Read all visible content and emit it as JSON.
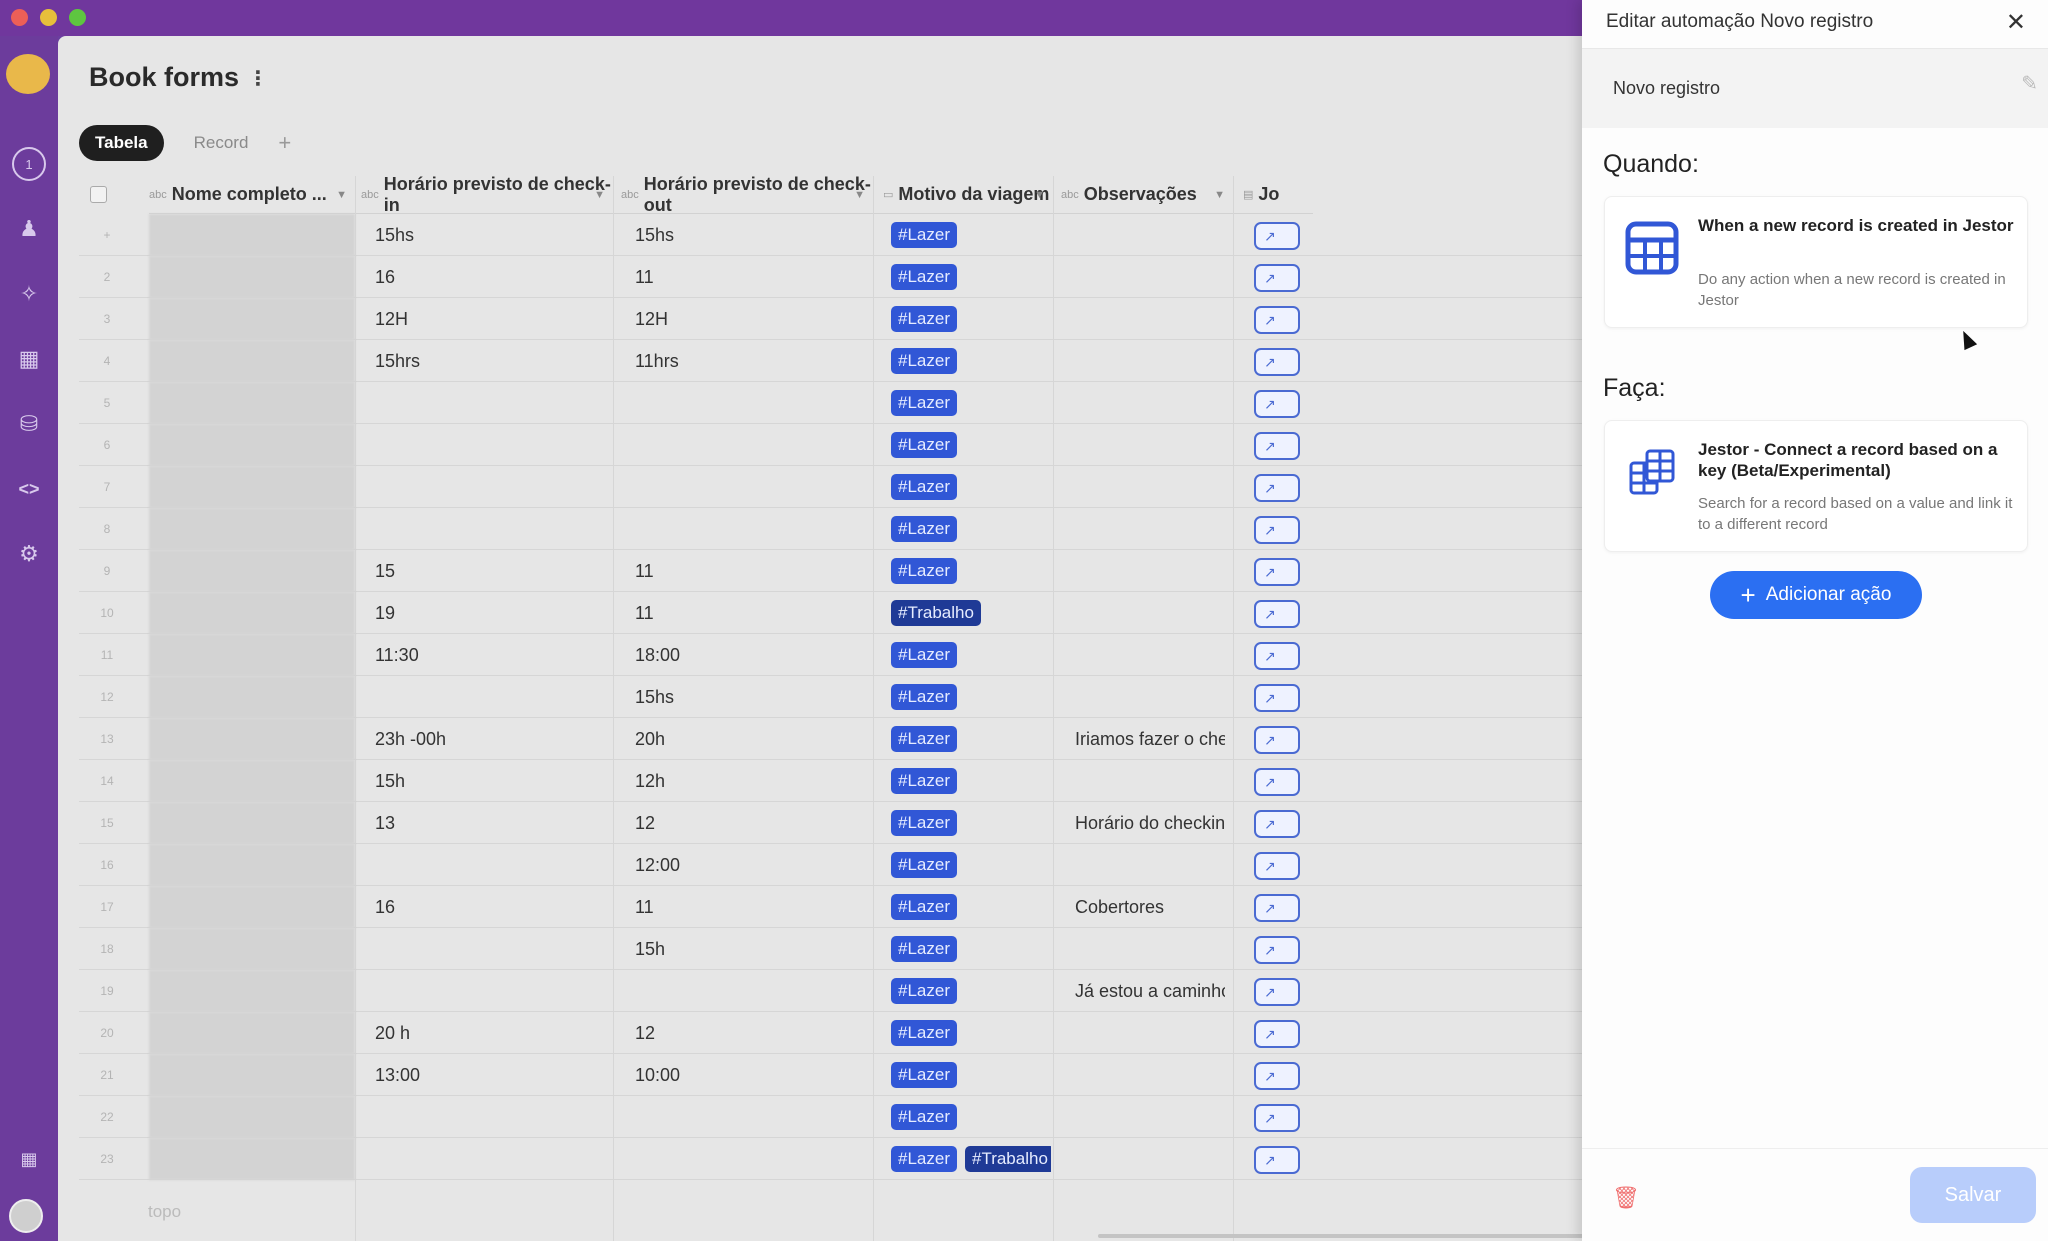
{
  "window": {
    "title": ""
  },
  "page": {
    "title": "Book forms"
  },
  "tabs": [
    {
      "label": "Tabela"
    },
    {
      "label": "Record"
    }
  ],
  "leftbar": {
    "badge": "1"
  },
  "columns": [
    {
      "label": "Nome completo ...",
      "type": "abc"
    },
    {
      "label": "Horário previsto de check-in",
      "type": "abc"
    },
    {
      "label": "Horário previsto de check-out",
      "type": "abc"
    },
    {
      "label": "Motivo da viagem",
      "type": "select"
    },
    {
      "label": "Observações",
      "type": "abc"
    },
    {
      "label": "Jo",
      "type": "link"
    }
  ],
  "rows": [
    {
      "n": "+",
      "checkin": "15hs",
      "checkout": "15hs",
      "tags": [
        "#Lazer"
      ],
      "obs": ""
    },
    {
      "n": "2",
      "checkin": "16",
      "checkout": "11",
      "tags": [
        "#Lazer"
      ],
      "obs": ""
    },
    {
      "n": "3",
      "checkin": "12H",
      "checkout": "12H",
      "tags": [
        "#Lazer"
      ],
      "obs": ""
    },
    {
      "n": "4",
      "checkin": "15hrs",
      "checkout": "11hrs",
      "tags": [
        "#Lazer"
      ],
      "obs": ""
    },
    {
      "n": "5",
      "checkin": "",
      "checkout": "",
      "tags": [
        "#Lazer"
      ],
      "obs": ""
    },
    {
      "n": "6",
      "checkin": "",
      "checkout": "",
      "tags": [
        "#Lazer"
      ],
      "obs": ""
    },
    {
      "n": "7",
      "checkin": "",
      "checkout": "",
      "tags": [
        "#Lazer"
      ],
      "obs": ""
    },
    {
      "n": "8",
      "checkin": "",
      "checkout": "",
      "tags": [
        "#Lazer"
      ],
      "obs": ""
    },
    {
      "n": "9",
      "checkin": "15",
      "checkout": "11",
      "tags": [
        "#Lazer"
      ],
      "obs": ""
    },
    {
      "n": "10",
      "checkin": "19",
      "checkout": "11",
      "tags": [
        "#Trabalho"
      ],
      "obs": ""
    },
    {
      "n": "11",
      "checkin": "11:30",
      "checkout": "18:00",
      "tags": [
        "#Lazer"
      ],
      "obs": ""
    },
    {
      "n": "12",
      "checkin": "",
      "checkout": "15hs",
      "tags": [
        "#Lazer"
      ],
      "obs": ""
    },
    {
      "n": "13",
      "checkin": "23h -00h",
      "checkout": "20h",
      "tags": [
        "#Lazer"
      ],
      "obs": "Iriamos fazer o chec..."
    },
    {
      "n": "14",
      "checkin": "15h",
      "checkout": "12h",
      "tags": [
        "#Lazer"
      ],
      "obs": ""
    },
    {
      "n": "15",
      "checkin": "13",
      "checkout": "12",
      "tags": [
        "#Lazer"
      ],
      "obs": "Horário do checkin ..."
    },
    {
      "n": "16",
      "checkin": "",
      "checkout": "12:00",
      "tags": [
        "#Lazer"
      ],
      "obs": ""
    },
    {
      "n": "17",
      "checkin": "16",
      "checkout": "11",
      "tags": [
        "#Lazer"
      ],
      "obs": "Cobertores"
    },
    {
      "n": "18",
      "checkin": "",
      "checkout": "15h",
      "tags": [
        "#Lazer"
      ],
      "obs": ""
    },
    {
      "n": "19",
      "checkin": "",
      "checkout": "",
      "tags": [
        "#Lazer"
      ],
      "obs": "Já estou a caminho ..."
    },
    {
      "n": "20",
      "checkin": "20 h",
      "checkout": "12",
      "tags": [
        "#Lazer"
      ],
      "obs": ""
    },
    {
      "n": "21",
      "checkin": "13:00",
      "checkout": "10:00",
      "tags": [
        "#Lazer"
      ],
      "obs": ""
    },
    {
      "n": "22",
      "checkin": "",
      "checkout": "",
      "tags": [
        "#Lazer"
      ],
      "obs": ""
    },
    {
      "n": "23",
      "checkin": "",
      "checkout": "",
      "tags": [
        "#Lazer",
        "#Trabalho"
      ],
      "obs": ""
    }
  ],
  "footer": {
    "text": "topo"
  },
  "panel": {
    "title": "Editar automação Novo registro",
    "name": "Novo registro",
    "when_label": "Quando:",
    "trigger_title": "When a new record is created in Jestor",
    "trigger_desc": "Do any action when a new record is created in Jestor",
    "do_label": "Faça:",
    "action_title": "Jestor - Connect a record based on a key (Beta/Experimental)",
    "action_desc": "Search for a record based on a value and link it to a different record",
    "add_action": "Adicionar ação",
    "save": "Salvar"
  },
  "colors": {
    "accent": "#2b6ff2",
    "tag": "#3157d6",
    "sidebar": "#6c3c9c"
  }
}
